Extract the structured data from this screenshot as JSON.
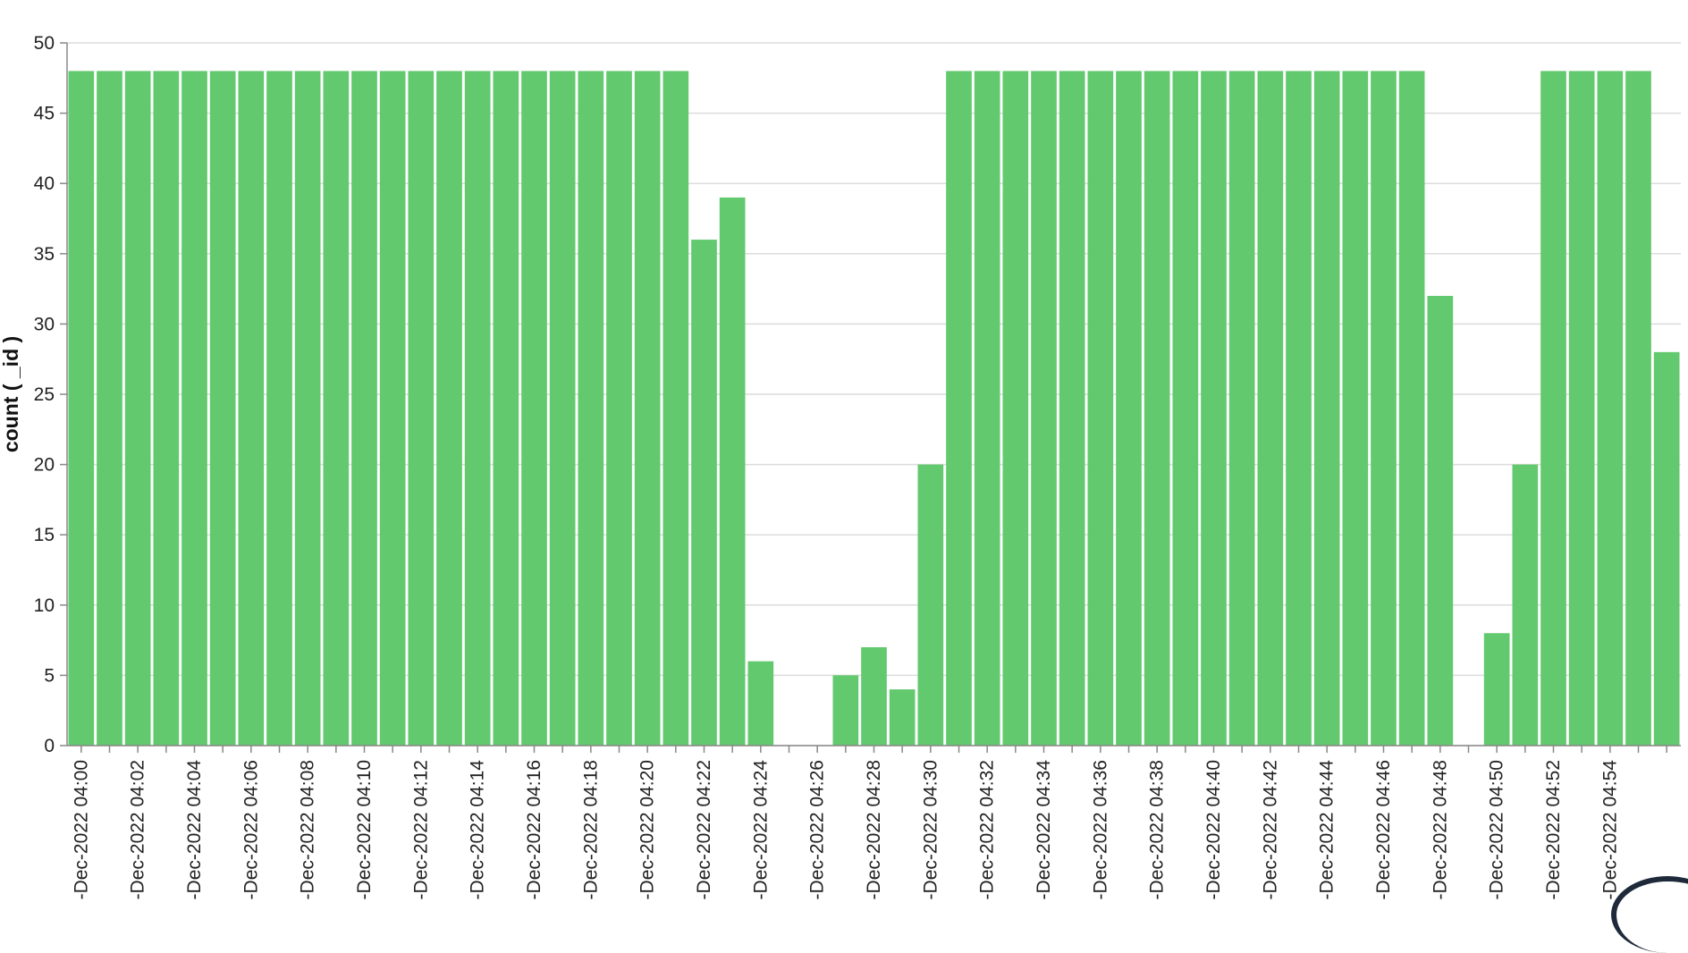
{
  "chart_data": {
    "type": "bar",
    "title": "",
    "xlabel": "",
    "ylabel": "count ( _id )",
    "ylim": [
      0,
      50
    ],
    "yticks": [
      0,
      5,
      10,
      15,
      20,
      25,
      30,
      35,
      40,
      45,
      50
    ],
    "grid": true,
    "bar_color": "#62c96e",
    "x_tick_labels": [
      "-Dec-2022 04:00",
      "-Dec-2022 04:02",
      "-Dec-2022 04:04",
      "-Dec-2022 04:06",
      "-Dec-2022 04:08",
      "-Dec-2022 04:10",
      "-Dec-2022 04:12",
      "-Dec-2022 04:14",
      "-Dec-2022 04:16",
      "-Dec-2022 04:18",
      "-Dec-2022 04:20",
      "-Dec-2022 04:22",
      "-Dec-2022 04:24",
      "-Dec-2022 04:26",
      "-Dec-2022 04:28",
      "-Dec-2022 04:30",
      "-Dec-2022 04:32",
      "-Dec-2022 04:34",
      "-Dec-2022 04:36",
      "-Dec-2022 04:38",
      "-Dec-2022 04:40",
      "-Dec-2022 04:42",
      "-Dec-2022 04:44",
      "-Dec-2022 04:46",
      "-Dec-2022 04:48",
      "-Dec-2022 04:50",
      "-Dec-2022 04:52",
      "-Dec-2022 04:54"
    ],
    "values": [
      48,
      48,
      48,
      48,
      48,
      48,
      48,
      48,
      48,
      48,
      48,
      48,
      48,
      48,
      48,
      48,
      48,
      48,
      48,
      48,
      48,
      48,
      36,
      39,
      6,
      0,
      0,
      5,
      7,
      4,
      20,
      48,
      48,
      48,
      48,
      48,
      48,
      48,
      48,
      48,
      48,
      48,
      48,
      48,
      48,
      48,
      48,
      48,
      32,
      0,
      8,
      20,
      48,
      48,
      48,
      48,
      28
    ]
  }
}
